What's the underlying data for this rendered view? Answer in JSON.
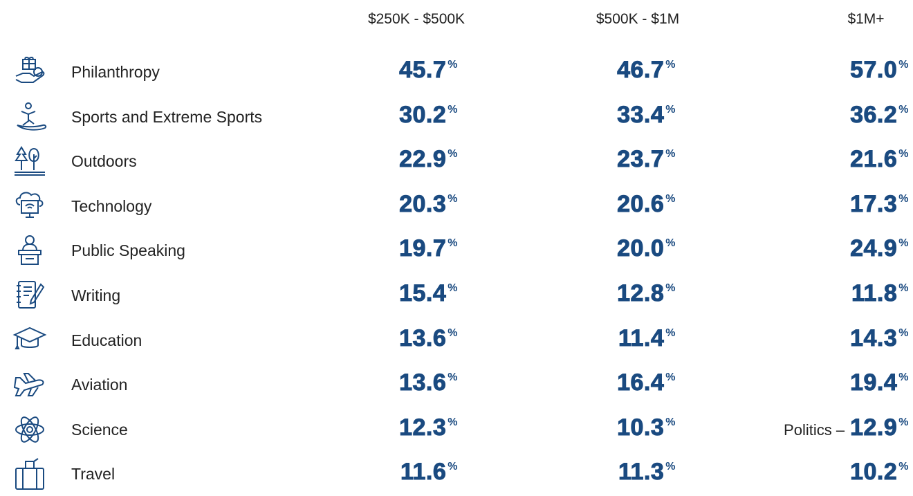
{
  "table": {
    "columns": [
      "$250K - $500K",
      "$500K - $1M",
      "$1M+"
    ],
    "rows": [
      {
        "label": "Philanthropy",
        "cells": [
          "45.7%",
          "46.7%",
          "57.0%"
        ]
      },
      {
        "label": "Sports and Extreme Sports",
        "cells": [
          "30.2%",
          "33.4%",
          "36.2%"
        ]
      },
      {
        "label": "Outdoors",
        "cells": [
          "22.9%",
          "23.7%",
          "21.6%"
        ]
      },
      {
        "label": "Technology",
        "cells": [
          "20.3%",
          "20.6%",
          "17.3%"
        ]
      },
      {
        "label": "Public Speaking",
        "cells": [
          "19.7%",
          "20.0%",
          "24.9%"
        ]
      },
      {
        "label": "Writing",
        "cells": [
          "15.4%",
          "12.8%",
          "11.8%"
        ]
      },
      {
        "label": "Education",
        "cells": [
          "13.6%",
          "11.4%",
          "14.3%"
        ]
      },
      {
        "label": "Aviation",
        "cells": [
          "13.6%",
          "16.4%",
          "19.4%"
        ]
      },
      {
        "label": "Science",
        "cells": [
          "12.3%",
          "10.3%",
          {
            "note": "Politics –",
            "value": "12.9%"
          }
        ]
      },
      {
        "label": "Travel",
        "cells": [
          "11.6%",
          "11.3%",
          "10.2%"
        ]
      }
    ]
  }
}
